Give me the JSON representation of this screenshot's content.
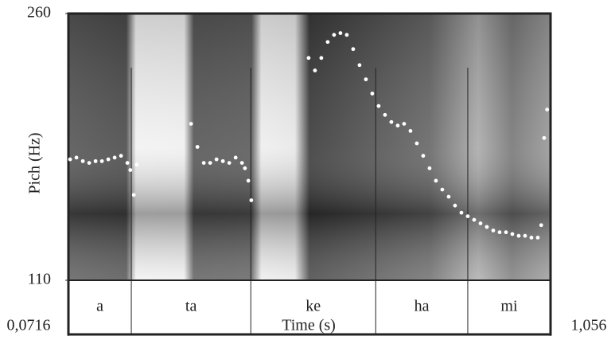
{
  "chart_data": {
    "type": "scatter",
    "ylabel": "Pich (Hz)",
    "xlabel": "Time (s)",
    "ylim": [
      110,
      260
    ],
    "yticks": [
      110,
      260
    ],
    "xlim": [
      0.0716,
      1.056
    ],
    "xticks": [
      {
        "value": 0.0716,
        "label": "0,0716"
      },
      {
        "value": 1.056,
        "label": "1,056"
      }
    ],
    "series": [
      {
        "color": "#ffffff",
        "x": [
          0.075,
          0.088,
          0.101,
          0.114,
          0.127,
          0.14,
          0.153,
          0.166,
          0.179,
          0.192,
          0.198,
          0.205,
          0.211,
          0.322,
          0.335,
          0.348,
          0.361,
          0.374,
          0.387,
          0.4,
          0.413,
          0.426,
          0.432,
          0.439,
          0.445,
          0.562,
          0.575,
          0.588,
          0.601,
          0.614,
          0.627,
          0.64,
          0.653,
          0.666,
          0.679,
          0.692,
          0.705,
          0.718,
          0.731,
          0.744,
          0.757,
          0.77,
          0.783,
          0.796,
          0.809,
          0.822,
          0.835,
          0.848,
          0.861,
          0.874,
          0.887,
          0.9,
          0.913,
          0.926,
          0.939,
          0.952,
          0.965,
          0.978,
          0.991,
          1.004,
          1.017,
          1.03,
          1.037,
          1.043,
          1.049
        ],
        "values": [
          178,
          179,
          177,
          176,
          177,
          177,
          178,
          179,
          180,
          176,
          172,
          158,
          175,
          198,
          185,
          176,
          176,
          178,
          177,
          176,
          179,
          176,
          173,
          166,
          155,
          235,
          228,
          235,
          244,
          248,
          249,
          248,
          240,
          231,
          223,
          215,
          208,
          203,
          199,
          197,
          198,
          194,
          187,
          180,
          173,
          166,
          161,
          157,
          152,
          148,
          146,
          144,
          142,
          140,
          138,
          137,
          137,
          136,
          135,
          135,
          134,
          134,
          141,
          190,
          206
        ]
      }
    ],
    "tier": {
      "labels": [
        "a",
        "ta",
        "ke",
        "ha",
        "mi"
      ],
      "boundaries": [
        0.2,
        0.444,
        0.699,
        0.887
      ]
    }
  }
}
